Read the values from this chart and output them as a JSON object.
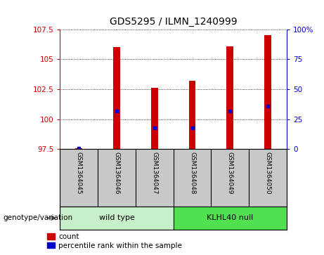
{
  "title": "GDS5295 / ILMN_1240999",
  "samples": [
    "GSM1364045",
    "GSM1364046",
    "GSM1364047",
    "GSM1364048",
    "GSM1364049",
    "GSM1364050"
  ],
  "red_bar_bottom": 97.5,
  "red_bar_tops": [
    97.58,
    106.0,
    102.6,
    103.2,
    106.1,
    107.0
  ],
  "blue_dot_y": [
    97.6,
    100.7,
    99.3,
    99.3,
    100.7,
    101.1
  ],
  "ylim_left": [
    97.5,
    107.5
  ],
  "ylim_right": [
    0,
    100
  ],
  "yticks_left": [
    97.5,
    100.0,
    102.5,
    105.0,
    107.5
  ],
  "yticks_right": [
    0,
    25,
    50,
    75,
    100
  ],
  "ytick_labels_left": [
    "97.5",
    "100",
    "102.5",
    "105",
    "107.5"
  ],
  "ytick_labels_right": [
    "0",
    "25",
    "50",
    "75",
    "100%"
  ],
  "left_axis_color": "#cc0000",
  "right_axis_color": "#0000cc",
  "bar_color": "#cc0000",
  "dot_color": "#0000cc",
  "label_row_bg": "#c8c8c8",
  "wild_type_color": "#c8f0c8",
  "klhl40_color": "#50e050",
  "genotype_label": "genotype/variation",
  "legend_count": "count",
  "legend_percentile": "percentile rank within the sample",
  "bar_width": 0.18
}
